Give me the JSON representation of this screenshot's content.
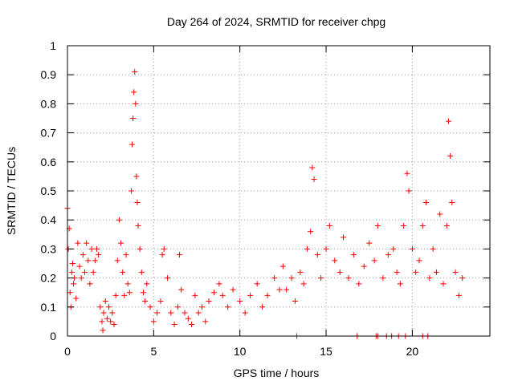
{
  "chart_data": {
    "type": "scatter",
    "title": "Day 264 of 2024, SRMTID for receiver chpg",
    "xlabel": "GPS time / hours",
    "ylabel": "SRMTID / TECUs",
    "xlim": [
      0,
      24.5
    ],
    "ylim": [
      0,
      1
    ],
    "x_ticks": [
      0,
      5,
      10,
      15,
      20
    ],
    "x_tick_labels": [
      "0",
      "5",
      "10",
      "15",
      "20"
    ],
    "y_ticks": [
      0,
      0.1,
      0.2,
      0.3,
      0.4,
      0.5,
      0.6,
      0.7,
      0.8,
      0.9,
      1
    ],
    "y_tick_labels": [
      "0",
      "0.1",
      "0.2",
      "0.3",
      "0.4",
      "0.5",
      "0.6",
      "0.7",
      "0.8",
      "0.9",
      "1"
    ],
    "grid": true,
    "marker": "plus",
    "color": "#ff0000",
    "series": [
      {
        "name": "SRMTID",
        "x": [
          0.0,
          0.05,
          0.1,
          0.15,
          0.2,
          0.25,
          0.3,
          0.35,
          0.4,
          0.5,
          0.6,
          0.7,
          0.8,
          0.9,
          1.0,
          1.1,
          1.2,
          1.3,
          1.4,
          1.5,
          1.6,
          1.7,
          1.8,
          1.9,
          2.0,
          2.05,
          2.1,
          2.2,
          2.3,
          2.4,
          2.5,
          2.6,
          2.7,
          2.8,
          2.9,
          3.0,
          3.1,
          3.2,
          3.3,
          3.4,
          3.5,
          3.6,
          3.7,
          3.75,
          3.8,
          3.85,
          3.9,
          3.95,
          4.0,
          4.05,
          4.1,
          4.2,
          4.3,
          4.4,
          4.5,
          4.6,
          4.8,
          5.0,
          5.2,
          5.4,
          5.5,
          5.6,
          5.8,
          6.0,
          6.2,
          6.4,
          6.5,
          6.6,
          6.8,
          7.0,
          7.2,
          7.4,
          7.6,
          7.8,
          8.0,
          8.2,
          8.5,
          8.8,
          9.0,
          9.3,
          9.6,
          10.0,
          10.3,
          10.6,
          11.0,
          11.3,
          11.6,
          12.0,
          12.3,
          12.5,
          12.7,
          13.0,
          13.2,
          13.5,
          13.7,
          13.9,
          14.1,
          14.2,
          14.3,
          14.5,
          14.7,
          15.0,
          15.2,
          15.5,
          15.8,
          16.0,
          16.3,
          16.6,
          16.9,
          17.2,
          17.5,
          17.8,
          18.0,
          18.3,
          18.6,
          18.9,
          19.1,
          19.3,
          19.5,
          19.7,
          19.8,
          20.0,
          20.2,
          20.4,
          20.6,
          20.8,
          21.0,
          21.2,
          21.4,
          21.6,
          21.8,
          22.0,
          22.1,
          22.2,
          22.3,
          22.5,
          22.7,
          22.9,
          13.3,
          16.8,
          17.9,
          18.0,
          18.5,
          18.8,
          19.2,
          19.6,
          20.6,
          20.9
        ],
        "y": [
          0.44,
          0.3,
          0.37,
          0.15,
          0.1,
          0.22,
          0.25,
          0.18,
          0.2,
          0.13,
          0.32,
          0.24,
          0.2,
          0.28,
          0.22,
          0.32,
          0.26,
          0.18,
          0.3,
          0.22,
          0.26,
          0.3,
          0.28,
          0.1,
          0.05,
          0.02,
          0.08,
          0.12,
          0.06,
          0.1,
          0.05,
          0.08,
          0.04,
          0.14,
          0.26,
          0.4,
          0.32,
          0.22,
          0.14,
          0.28,
          0.18,
          0.15,
          0.5,
          0.66,
          0.75,
          0.84,
          0.91,
          0.8,
          0.55,
          0.46,
          0.38,
          0.3,
          0.22,
          0.15,
          0.12,
          0.18,
          0.1,
          0.05,
          0.08,
          0.12,
          0.28,
          0.3,
          0.2,
          0.08,
          0.04,
          0.1,
          0.28,
          0.16,
          0.08,
          0.06,
          0.04,
          0.14,
          0.08,
          0.1,
          0.05,
          0.12,
          0.15,
          0.18,
          0.14,
          0.1,
          0.16,
          0.12,
          0.08,
          0.14,
          0.18,
          0.1,
          0.14,
          0.2,
          0.16,
          0.24,
          0.16,
          0.2,
          0.12,
          0.22,
          0.18,
          0.3,
          0.36,
          0.58,
          0.54,
          0.28,
          0.2,
          0.3,
          0.38,
          0.26,
          0.22,
          0.34,
          0.2,
          0.28,
          0.18,
          0.24,
          0.32,
          0.26,
          0.38,
          0.2,
          0.28,
          0.3,
          0.22,
          0.18,
          0.38,
          0.56,
          0.5,
          0.3,
          0.22,
          0.26,
          0.38,
          0.46,
          0.2,
          0.3,
          0.22,
          0.42,
          0.18,
          0.38,
          0.74,
          0.62,
          0.46,
          0.22,
          0.14,
          0.2,
          0.0,
          0.0,
          0.0,
          0.0,
          0.0,
          0.0,
          0.0,
          0.0,
          0.0,
          0.0
        ]
      }
    ]
  }
}
